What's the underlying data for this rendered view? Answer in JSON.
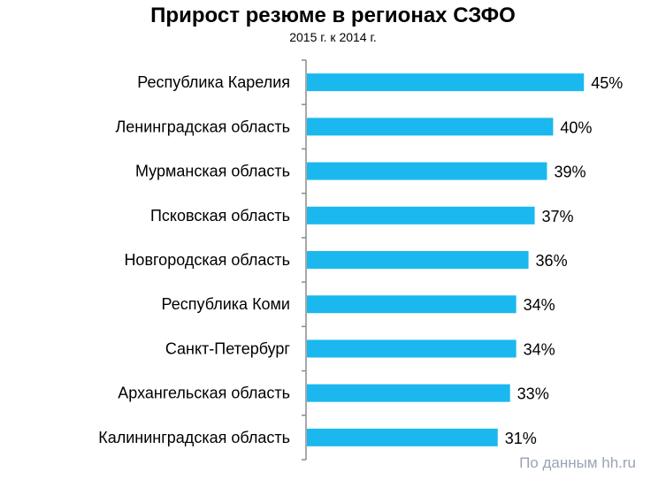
{
  "chart_data": {
    "type": "bar",
    "orientation": "horizontal",
    "title": "Прирост резюме в регионах СЗФО",
    "subtitle": "2015 г. к 2014 г.",
    "categories": [
      "Республика Карелия",
      "Ленинградская область",
      "Мурманская область",
      "Псковская область",
      "Новгородская область",
      "Республика Коми",
      "Санкт-Петербург",
      "Архангельская область",
      "Калининградская область"
    ],
    "values": [
      45,
      40,
      39,
      37,
      36,
      34,
      34,
      33,
      31
    ],
    "data_labels": [
      "45%",
      "40%",
      "39%",
      "37%",
      "36%",
      "34%",
      "34%",
      "33%",
      "31%"
    ],
    "xlim": [
      0,
      50
    ],
    "grid": false,
    "legend": "none",
    "bar_color": "#1ab8ee"
  },
  "source": "По данным hh.ru"
}
